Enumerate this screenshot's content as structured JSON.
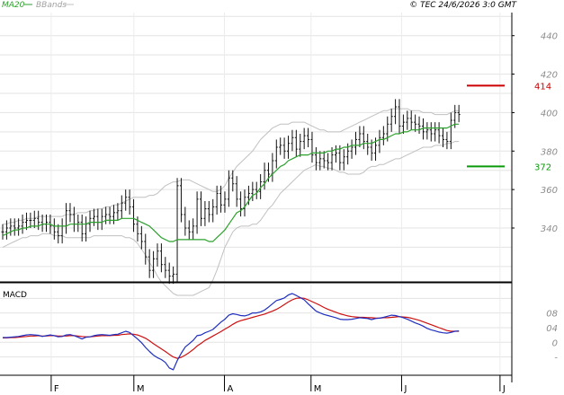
{
  "header": {
    "legend_ma20": "MA20",
    "legend_bbands": "BBands",
    "copyright": "© TEC 24/6/2026 3:0 GMT"
  },
  "colors": {
    "ma20": "#2ca02c",
    "bbands": "#c0c0c0",
    "target_high": "#cc0000",
    "target_low": "#0a9a0a",
    "macd": "#1f2fbf",
    "signal": "#cc1010",
    "price_bar": "#111111",
    "grid": "#e3e3e3"
  },
  "chart_data": [
    {
      "type": "line",
      "name": "price-panel",
      "yaxis_ticks": [
        "340",
        "360",
        "380",
        "400",
        "420",
        "440"
      ],
      "ylim": [
        312,
        452
      ],
      "x_months": [
        "F",
        "M",
        "A",
        "M",
        "J",
        "J"
      ],
      "month_starts": [
        13,
        34,
        57,
        79,
        102,
        127
      ],
      "xlim": [
        0,
        130
      ],
      "grid": true,
      "levels": [
        {
          "label": "414",
          "value": 414,
          "role": "resistance"
        },
        {
          "label": "372",
          "value": 372,
          "role": "support"
        }
      ],
      "ohlc_close": [
        338,
        340,
        341,
        340,
        341,
        343,
        344,
        344,
        345,
        343,
        342,
        343,
        341,
        338,
        336,
        341,
        349,
        347,
        342,
        343,
        337,
        342,
        345,
        346,
        343,
        346,
        347,
        346,
        348,
        349,
        353,
        356,
        351,
        342,
        337,
        333,
        325,
        318,
        324,
        328,
        321,
        318,
        315,
        316,
        362,
        347,
        340,
        338,
        341,
        355,
        345,
        350,
        347,
        351,
        358,
        352,
        355,
        366,
        363,
        355,
        350,
        356,
        358,
        360,
        359,
        364,
        370,
        368,
        375,
        382,
        383,
        380,
        384,
        387,
        381,
        385,
        388,
        386,
        378,
        374,
        376,
        375,
        374,
        378,
        379,
        374,
        377,
        380,
        382,
        386,
        389,
        385,
        382,
        379,
        383,
        387,
        389,
        394,
        398,
        403,
        393,
        395,
        397,
        395,
        394,
        393,
        390,
        391,
        389,
        391,
        388,
        386,
        385,
        396,
        400,
        399
      ],
      "ma20": [
        336,
        337,
        338,
        339,
        339,
        340,
        340,
        341,
        341,
        341,
        342,
        342,
        342,
        341,
        341,
        341,
        341,
        342,
        342,
        342,
        342,
        342,
        343,
        343,
        343,
        343,
        344,
        344,
        344,
        344,
        345,
        345,
        345,
        345,
        344,
        343,
        342,
        341,
        339,
        337,
        335,
        334,
        333,
        333,
        334,
        334,
        334,
        334,
        334,
        334,
        334,
        334,
        333,
        333,
        335,
        337,
        339,
        342,
        345,
        348,
        349,
        351,
        354,
        357,
        358,
        361,
        363,
        366,
        368,
        370,
        372,
        373,
        375,
        376,
        377,
        378,
        378,
        378,
        379,
        379,
        379,
        379,
        380,
        380,
        381,
        381,
        382,
        382,
        383,
        383,
        383,
        384,
        384,
        384,
        385,
        386,
        386,
        387,
        388,
        389,
        389,
        390,
        390,
        391,
        391,
        391,
        392,
        392,
        392,
        392,
        392,
        392,
        392,
        393,
        394,
        394
      ],
      "bb_upper": [
        342,
        342,
        343,
        343,
        344,
        344,
        345,
        345,
        345,
        346,
        346,
        346,
        346,
        346,
        346,
        346,
        347,
        347,
        347,
        348,
        348,
        348,
        349,
        349,
        350,
        350,
        351,
        351,
        352,
        352,
        353,
        354,
        355,
        356,
        356,
        356,
        356,
        357,
        357,
        358,
        360,
        362,
        363,
        364,
        364,
        365,
        365,
        365,
        364,
        363,
        362,
        361,
        360,
        359,
        359,
        360,
        362,
        366,
        369,
        372,
        374,
        376,
        378,
        380,
        383,
        386,
        388,
        390,
        392,
        393,
        394,
        394,
        394,
        395,
        395,
        395,
        395,
        394,
        393,
        392,
        391,
        391,
        390,
        390,
        390,
        390,
        391,
        392,
        393,
        394,
        395,
        396,
        397,
        398,
        399,
        400,
        401,
        401,
        402,
        402,
        402,
        402,
        402,
        401,
        401,
        401,
        400,
        400,
        400,
        399,
        399,
        399,
        399,
        400,
        401,
        401
      ],
      "bb_lower": [
        330,
        331,
        332,
        333,
        334,
        335,
        335,
        336,
        336,
        336,
        337,
        337,
        337,
        336,
        336,
        336,
        335,
        335,
        335,
        335,
        335,
        335,
        335,
        336,
        336,
        336,
        336,
        336,
        336,
        336,
        336,
        335,
        335,
        334,
        332,
        329,
        326,
        322,
        319,
        315,
        312,
        310,
        308,
        306,
        305,
        305,
        305,
        305,
        305,
        306,
        307,
        308,
        309,
        313,
        318,
        324,
        330,
        334,
        338,
        340,
        341,
        341,
        341,
        342,
        342,
        344,
        347,
        350,
        352,
        355,
        358,
        360,
        362,
        364,
        366,
        368,
        370,
        371,
        372,
        373,
        372,
        372,
        371,
        371,
        370,
        369,
        369,
        368,
        368,
        368,
        368,
        369,
        371,
        372,
        372,
        373,
        373,
        374,
        375,
        376,
        376,
        377,
        378,
        379,
        380,
        381,
        382,
        382,
        382,
        383,
        383,
        383,
        384,
        384,
        385,
        385
      ]
    },
    {
      "type": "line",
      "name": "macd-panel",
      "title": "MACD",
      "yaxis_ticks": [
        "-",
        "0",
        "04",
        "08"
      ],
      "ylim": [
        -9,
        16
      ],
      "series": [
        {
          "name": "",
          "role": "macd",
          "values": [
            1.3,
            1.3,
            1.4,
            1.5,
            1.6,
            1.8,
            2.0,
            2.1,
            2.0,
            1.9,
            1.6,
            1.8,
            2.0,
            1.8,
            1.5,
            1.6,
            2.0,
            2.1,
            1.8,
            1.4,
            0.9,
            1.4,
            1.5,
            1.8,
            2.0,
            2.1,
            2.0,
            1.9,
            2.1,
            2.2,
            2.6,
            3.0,
            2.7,
            1.8,
            0.9,
            -0.1,
            -1.4,
            -2.5,
            -3.5,
            -4.2,
            -4.7,
            -5.5,
            -7.0,
            -7.5,
            -5.0,
            -3.0,
            -1.3,
            -0.4,
            0.5,
            1.8,
            2.0,
            2.6,
            3.0,
            3.5,
            4.5,
            5.5,
            6.3,
            7.4,
            7.8,
            7.6,
            7.3,
            7.2,
            7.5,
            8.0,
            8.0,
            8.3,
            8.8,
            9.6,
            10.5,
            11.4,
            11.7,
            12.1,
            12.9,
            13.3,
            12.8,
            12.2,
            11.6,
            10.5,
            9.5,
            8.5,
            8.0,
            7.6,
            7.3,
            7.0,
            6.7,
            6.3,
            6.2,
            6.2,
            6.3,
            6.5,
            6.7,
            6.6,
            6.5,
            6.2,
            6.5,
            6.6,
            6.8,
            7.1,
            7.4,
            7.3,
            7.0,
            6.7,
            6.3,
            5.8,
            5.3,
            4.9,
            4.4,
            3.8,
            3.4,
            3.1,
            2.8,
            2.6,
            2.5,
            2.7,
            3.0,
            3.1
          ]
        },
        {
          "name": "",
          "role": "signal",
          "values": [
            1.2,
            1.2,
            1.3,
            1.3,
            1.4,
            1.5,
            1.6,
            1.7,
            1.7,
            1.8,
            1.7,
            1.7,
            1.8,
            1.8,
            1.7,
            1.7,
            1.7,
            1.8,
            1.8,
            1.7,
            1.6,
            1.5,
            1.5,
            1.6,
            1.7,
            1.8,
            1.8,
            1.8,
            1.9,
            1.9,
            2.1,
            2.2,
            2.3,
            2.2,
            2.0,
            1.6,
            1.1,
            0.4,
            -0.4,
            -1.1,
            -1.8,
            -2.5,
            -3.3,
            -4.0,
            -4.4,
            -4.1,
            -3.5,
            -2.8,
            -2.0,
            -1.0,
            -0.3,
            0.5,
            1.1,
            1.7,
            2.3,
            2.9,
            3.6,
            4.2,
            4.9,
            5.5,
            5.9,
            6.2,
            6.5,
            6.8,
            7.1,
            7.4,
            7.7,
            8.1,
            8.5,
            9.0,
            9.6,
            10.3,
            11.0,
            11.6,
            12.0,
            12.1,
            12.0,
            11.6,
            11.1,
            10.6,
            10.1,
            9.5,
            9.0,
            8.6,
            8.2,
            7.8,
            7.5,
            7.2,
            7.0,
            6.9,
            6.8,
            6.8,
            6.7,
            6.7,
            6.6,
            6.6,
            6.7,
            6.7,
            6.8,
            6.9,
            7.0,
            6.9,
            6.8,
            6.6,
            6.3,
            6.0,
            5.6,
            5.2,
            4.8,
            4.4,
            4.0,
            3.6,
            3.2,
            3.0,
            3.0,
            3.0
          ]
        }
      ]
    }
  ]
}
